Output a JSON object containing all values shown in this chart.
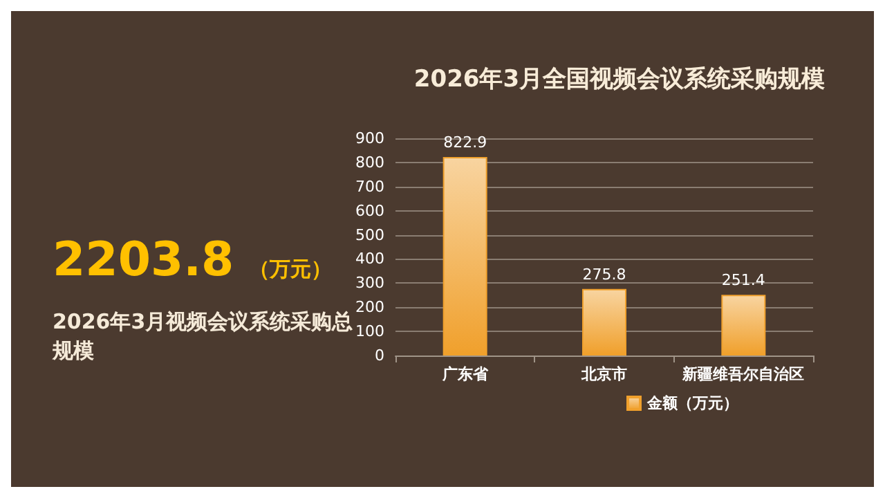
{
  "chart_data": {
    "type": "bar",
    "title": "2026年3月全国视频会议系统采购规模",
    "categories": [
      "广东省",
      "北京市",
      "新疆维吾尔自治区"
    ],
    "series": [
      {
        "name": "金额（万元）",
        "color": "#f0a02c",
        "values": [
          822.9,
          275.8,
          251.4
        ]
      }
    ],
    "ylim": [
      0,
      900
    ],
    "yticks": [
      0,
      100,
      200,
      300,
      400,
      500,
      600,
      700,
      800,
      900
    ],
    "grid": "y",
    "legend": "bottom",
    "data_labels": true,
    "annotations": [
      "2203.8",
      "（万元）",
      "2026年3月视频会议系统采购总规模"
    ]
  }
}
